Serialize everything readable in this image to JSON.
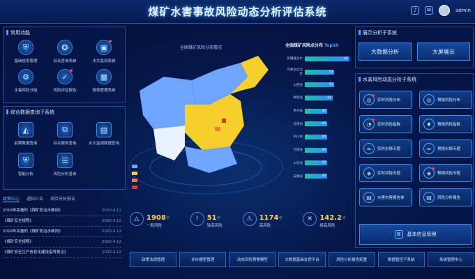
{
  "header": {
    "title": "煤矿水害事故风险动态分析评估系统",
    "user": "admin"
  },
  "common": {
    "title": "常用功能",
    "items": [
      {
        "label": "基础信息管理",
        "icon": "user-shield-icon",
        "alert": false
      },
      {
        "label": "综合查询系统",
        "icon": "medal-icon",
        "alert": false
      },
      {
        "label": "水文监测系统",
        "icon": "monitor-icon",
        "alert": true
      },
      {
        "label": "水害风险分级",
        "icon": "gear-icon",
        "alert": false
      },
      {
        "label": "风险评估报告",
        "icon": "shield-check-icon",
        "alert": true
      },
      {
        "label": "报表管理系统",
        "icon": "table-icon",
        "alert": false
      }
    ]
  },
  "database": {
    "title": "综合数据查询子系统",
    "items": [
      {
        "label": "前期数据查询",
        "icon": "chart-icon",
        "alert": false
      },
      {
        "label": "综合服务查询",
        "icon": "network-icon",
        "alert": false
      },
      {
        "label": "水文监测数据查询",
        "icon": "document-icon",
        "alert": false
      },
      {
        "label": "智能分析",
        "icon": "shield-icon",
        "alert": false
      },
      {
        "label": "风险分析查询",
        "icon": "list-icon",
        "alert": false
      }
    ]
  },
  "news": {
    "tabs": [
      "政策中心",
      "通知公告",
      "风险分析报告"
    ],
    "active": 0,
    "items": [
      {
        "title": "2018年实施的《煤矿防治水细则》",
        "date": "2020.4.12"
      },
      {
        "title": "《煤矿安全规程》",
        "date": "2020.4.12"
      },
      {
        "title": "2018年实施的《煤矿防治水细则》",
        "date": "2020.4.12"
      },
      {
        "title": "《煤矿安全规程》",
        "date": "2020.4.12"
      },
      {
        "title": "《煤矿安全生产信息化建设指导意见》",
        "date": "2020.4.12"
      }
    ]
  },
  "map": {
    "title": "全国煤矿风险分布情况",
    "legend_colors": [
      "#6fa4ff",
      "#f5cf2c",
      "#f1802a",
      "#e0312b"
    ]
  },
  "stats": [
    {
      "value": "1908",
      "unit": "个",
      "label": "一般风险",
      "icon": "triangle-alert-icon"
    },
    {
      "value": "51",
      "unit": "个",
      "label": "较高风险",
      "icon": "alert-icon"
    },
    {
      "value": "1174",
      "unit": "个",
      "label": "高风险",
      "icon": "warning-icon"
    },
    {
      "value": "142.2",
      "unit": "个",
      "label": "极高风险",
      "icon": "danger-icon"
    }
  ],
  "ranking": {
    "title_prefix": "全国煤矿风险点分布",
    "title_highlight": "Top10",
    "items": [
      {
        "name": "新疆维吾尔",
        "value": 80
      },
      {
        "name": "内蒙古自治区",
        "value": 53
      },
      {
        "name": "山西省",
        "value": 53
      },
      {
        "name": "陕西省",
        "value": 50
      },
      {
        "name": "贵州省",
        "value": 40
      },
      {
        "name": "云南省",
        "value": 40
      },
      {
        "name": "四川省",
        "value": 40
      },
      {
        "name": "河南省",
        "value": 40
      },
      {
        "name": "山东省",
        "value": 40
      },
      {
        "name": "安徽省",
        "value": 40
      }
    ]
  },
  "display": {
    "title": "展示分析子系统",
    "big_data": "大数据分析",
    "big_screen": "大屏展示"
  },
  "water": {
    "title": "水害风险动态分析子系统",
    "items": [
      {
        "label": "实时风险分布",
        "icon": "target-icon",
        "alert": true
      },
      {
        "label": "预报风险分布",
        "icon": "target-icon",
        "alert": false
      },
      {
        "label": "实时风险指数",
        "icon": "gauge-icon",
        "alert": true
      },
      {
        "label": "预报风险指数",
        "icon": "drop-icon",
        "alert": false
      },
      {
        "label": "实时水情专题",
        "icon": "water-icon",
        "alert": false
      },
      {
        "label": "预报水情专题",
        "icon": "water-icon",
        "alert": false
      },
      {
        "label": "实时风险专题",
        "icon": "cube-icon",
        "alert": false
      },
      {
        "label": "预报风险专题",
        "icon": "cube-icon",
        "alert": true
      },
      {
        "label": "水害灾害报告单",
        "icon": "report-icon",
        "alert": false
      },
      {
        "label": "风险分析报告",
        "icon": "report-icon",
        "alert": false
      }
    ]
  },
  "management": {
    "label": "基本信息管理",
    "icon": "database-icon"
  },
  "nav": [
    "政策法规管理",
    "评价模型管理",
    "动态风险预警模型",
    "大数据基础支撑平台",
    "风险分析报告配置",
    "数据管控子系统",
    "系统管理中心"
  ]
}
